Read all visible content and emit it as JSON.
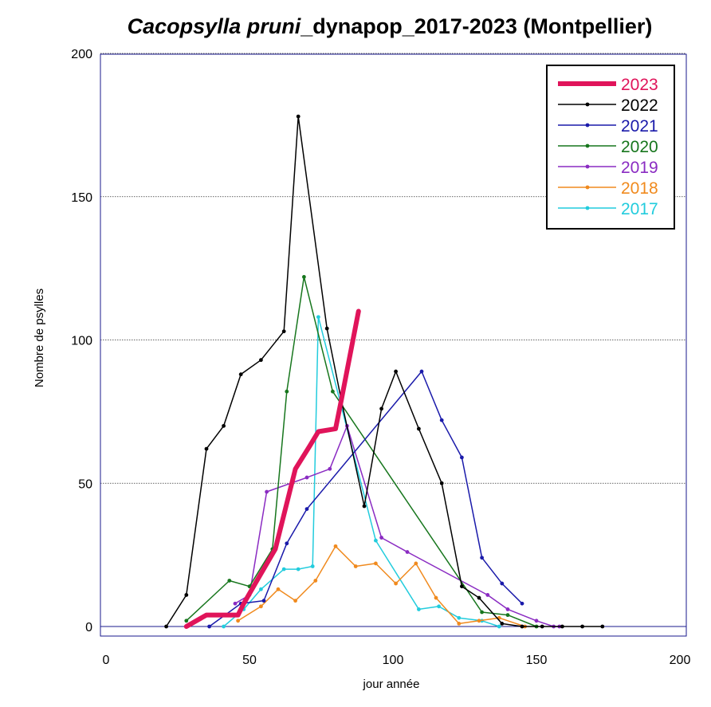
{
  "chart_data": {
    "type": "line",
    "title_italic": "Cacopsylla pruni",
    "title_rest": "_dynapop_2017-2023 (Montpellier)",
    "xlabel": "jour année",
    "ylabel": "Nombre de psylles",
    "xlim": [
      0,
      200
    ],
    "ylim": [
      0,
      200
    ],
    "xticks": [
      "0",
      "50",
      "100",
      "150",
      "200"
    ],
    "yticks": [
      "0",
      "50",
      "100",
      "150",
      "200"
    ],
    "grid": "horizontal dotted",
    "legend_position": "top-right",
    "series": [
      {
        "name": "2023",
        "color": "#e0145a",
        "width": 6,
        "points": [
          [
            28,
            0
          ],
          [
            35,
            4
          ],
          [
            41,
            4
          ],
          [
            46,
            4
          ],
          [
            48,
            8
          ],
          [
            52,
            15
          ],
          [
            59,
            27
          ],
          [
            66,
            55
          ],
          [
            71,
            63
          ],
          [
            74,
            68
          ],
          [
            80,
            69
          ],
          [
            82,
            79
          ],
          [
            88,
            110
          ]
        ]
      },
      {
        "name": "2022",
        "color": "#000000",
        "width": 1.5,
        "points": [
          [
            21,
            0
          ],
          [
            28,
            11
          ],
          [
            35,
            62
          ],
          [
            41,
            70
          ],
          [
            47,
            88
          ],
          [
            54,
            93
          ],
          [
            62,
            103
          ],
          [
            67,
            178
          ],
          [
            77,
            104
          ],
          [
            82,
            79
          ],
          [
            90,
            42
          ],
          [
            96,
            76
          ],
          [
            101,
            89
          ],
          [
            109,
            69
          ],
          [
            117,
            50
          ],
          [
            124,
            14
          ],
          [
            130,
            10
          ],
          [
            138,
            1
          ],
          [
            145,
            0
          ],
          [
            152,
            0
          ],
          [
            159,
            0
          ],
          [
            166,
            0
          ],
          [
            173,
            0
          ]
        ]
      },
      {
        "name": "2021",
        "color": "#1a1aaa",
        "width": 1.5,
        "points": [
          [
            36,
            0
          ],
          [
            47,
            8
          ],
          [
            55,
            9
          ],
          [
            63,
            29
          ],
          [
            70,
            41
          ],
          [
            110,
            89
          ],
          [
            117,
            72
          ],
          [
            124,
            59
          ],
          [
            131,
            24
          ],
          [
            138,
            15
          ],
          [
            145,
            8
          ]
        ]
      },
      {
        "name": "2020",
        "color": "#17761d",
        "width": 1.5,
        "points": [
          [
            28,
            2
          ],
          [
            43,
            16
          ],
          [
            50,
            14
          ],
          [
            58,
            27
          ],
          [
            63,
            82
          ],
          [
            69,
            122
          ],
          [
            79,
            82
          ],
          [
            131,
            5
          ],
          [
            140,
            4
          ],
          [
            150,
            0
          ]
        ]
      },
      {
        "name": "2019",
        "color": "#8a2bc2",
        "width": 1.5,
        "points": [
          [
            45,
            8
          ],
          [
            50,
            11
          ],
          [
            56,
            47
          ],
          [
            70,
            52
          ],
          [
            78,
            55
          ],
          [
            84,
            70
          ],
          [
            96,
            31
          ],
          [
            105,
            26
          ],
          [
            133,
            11
          ],
          [
            140,
            6
          ],
          [
            150,
            2
          ],
          [
            156,
            0
          ],
          [
            158,
            0
          ]
        ]
      },
      {
        "name": "2018",
        "color": "#f08a1e",
        "width": 1.5,
        "points": [
          [
            46,
            2
          ],
          [
            54,
            7
          ],
          [
            60,
            13
          ],
          [
            66,
            9
          ],
          [
            73,
            16
          ],
          [
            80,
            28
          ],
          [
            87,
            21
          ],
          [
            94,
            22
          ],
          [
            101,
            15
          ],
          [
            108,
            22
          ],
          [
            115,
            10
          ],
          [
            123,
            1
          ],
          [
            130,
            2
          ],
          [
            137,
            3
          ],
          [
            146,
            0
          ]
        ]
      },
      {
        "name": "2017",
        "color": "#22ccdd",
        "width": 1.5,
        "points": [
          [
            41,
            0
          ],
          [
            48,
            6
          ],
          [
            54,
            13
          ],
          [
            62,
            20
          ],
          [
            67,
            20
          ],
          [
            72,
            21
          ],
          [
            74,
            108
          ],
          [
            94,
            30
          ],
          [
            109,
            6
          ],
          [
            116,
            7
          ],
          [
            123,
            3
          ],
          [
            131,
            2
          ],
          [
            137,
            0
          ]
        ]
      }
    ]
  }
}
